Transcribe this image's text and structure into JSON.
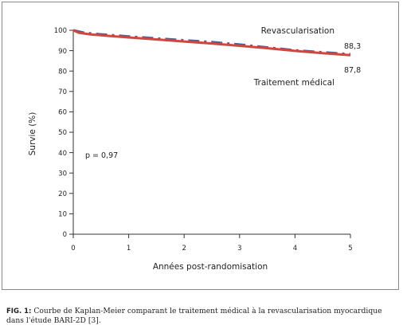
{
  "chart_data": {
    "type": "line",
    "xlabel": "Années post-randomisation",
    "ylabel": "Survie (%)",
    "xlim": [
      0,
      5
    ],
    "ylim": [
      0,
      100
    ],
    "x_ticks": [
      "0",
      "1",
      "2",
      "3",
      "4",
      "5"
    ],
    "y_ticks": [
      "0",
      "10",
      "20",
      "30",
      "40",
      "50",
      "60",
      "70",
      "80",
      "90",
      "100"
    ],
    "grid": false,
    "series": [
      {
        "name": "Revascularisation",
        "style": "dash-dot",
        "color": "#2e6aa6",
        "x": [
          0,
          0.2,
          0.5,
          1,
          1.5,
          2,
          2.5,
          3,
          3.5,
          4,
          4.5,
          5
        ],
        "y": [
          100,
          98.8,
          98.0,
          97.0,
          96.0,
          95.1,
          94.2,
          93.0,
          91.6,
          90.2,
          89.2,
          88.3
        ],
        "end_label": "88,3"
      },
      {
        "name": "Traitement médical",
        "style": "solid",
        "color": "#d9433a",
        "x": [
          0,
          0.1,
          0.3,
          0.6,
          1,
          1.5,
          2,
          2.5,
          3,
          3.5,
          4,
          4.5,
          5
        ],
        "y": [
          100,
          98.8,
          98.0,
          97.3,
          96.5,
          95.5,
          94.5,
          93.5,
          92.4,
          91.2,
          89.9,
          88.8,
          87.8
        ],
        "end_label": "87,8"
      }
    ],
    "annotations": [
      {
        "text": "p = 0,97"
      }
    ]
  },
  "caption": {
    "prefix": "FIG. 1:",
    "text": "Courbe de Kaplan-Meier comparant le traitement médical à la revascularisation myocardique dans l'étude BARI-2D [3]."
  }
}
